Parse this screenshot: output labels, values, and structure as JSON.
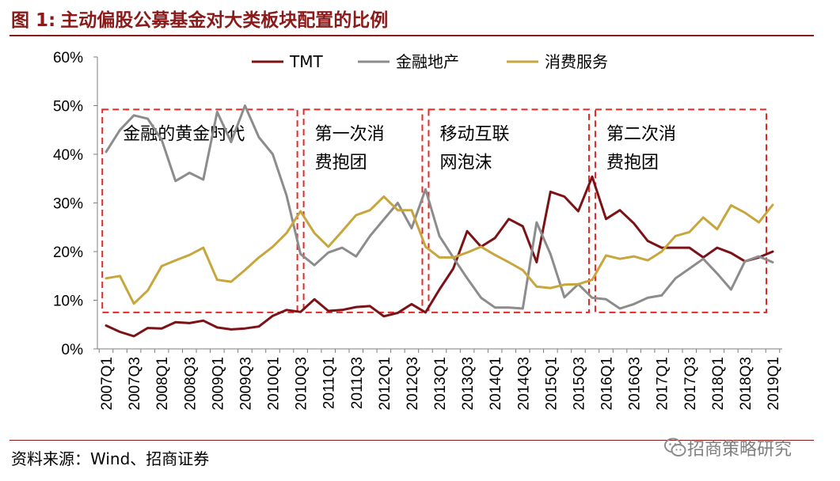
{
  "figure": {
    "title_number": "图 1:",
    "title": "主动偏股公募基金对大类板块配置的比例",
    "source": "资料来源：Wind、招商证券",
    "watermark": "招商策略研究",
    "watermark_icon": "wechat-icon"
  },
  "colors": {
    "title": "#8b1a1a",
    "tmt": "#7b1216",
    "finance": "#8c8c8c",
    "consumer": "#c7a63e",
    "annotation_box": "#e02a2a"
  },
  "chart_data": {
    "type": "line",
    "title": "",
    "xlabel": "",
    "ylabel": "",
    "ylim": [
      0,
      60
    ],
    "yticks": [
      "0%",
      "10%",
      "20%",
      "30%",
      "40%",
      "50%",
      "60%"
    ],
    "grid": false,
    "legend_position": "top-center",
    "x_tick_labels": [
      "2007Q1",
      "2007Q3",
      "2008Q1",
      "2008Q3",
      "2009Q1",
      "2009Q3",
      "2010Q1",
      "2010Q3",
      "2011Q1",
      "2011Q3",
      "2012Q1",
      "2012Q3",
      "2013Q1",
      "2013Q3",
      "2014Q1",
      "2014Q3",
      "2015Q1",
      "2015Q3",
      "2016Q1",
      "2016Q3",
      "2017Q1",
      "2017Q3",
      "2018Q1",
      "2018Q3",
      "2019Q1"
    ],
    "x": [
      "2007Q1",
      "2007Q2",
      "2007Q3",
      "2007Q4",
      "2008Q1",
      "2008Q2",
      "2008Q3",
      "2008Q4",
      "2009Q1",
      "2009Q2",
      "2009Q3",
      "2009Q4",
      "2010Q1",
      "2010Q2",
      "2010Q3",
      "2010Q4",
      "2011Q1",
      "2011Q2",
      "2011Q3",
      "2011Q4",
      "2012Q1",
      "2012Q2",
      "2012Q3",
      "2012Q4",
      "2013Q1",
      "2013Q2",
      "2013Q3",
      "2013Q4",
      "2014Q1",
      "2014Q2",
      "2014Q3",
      "2014Q4",
      "2015Q1",
      "2015Q2",
      "2015Q3",
      "2015Q4",
      "2016Q1",
      "2016Q2",
      "2016Q3",
      "2016Q4",
      "2017Q1",
      "2017Q2",
      "2017Q3",
      "2017Q4",
      "2018Q1",
      "2018Q2",
      "2018Q3",
      "2018Q4",
      "2019Q1"
    ],
    "series": [
      {
        "name": "TMT",
        "color": "#7b1216",
        "values": [
          4.8,
          3.5,
          2.6,
          4.3,
          4.2,
          5.5,
          5.3,
          5.8,
          4.4,
          4.0,
          4.2,
          4.6,
          6.8,
          8.0,
          7.6,
          10.2,
          7.8,
          8.0,
          8.6,
          8.8,
          6.7,
          7.4,
          9.2,
          7.5,
          12.2,
          16.5,
          24.2,
          21.0,
          22.8,
          26.7,
          25.2,
          17.8,
          32.3,
          31.3,
          28.3,
          35.4,
          26.7,
          28.5,
          25.8,
          22.2,
          20.8,
          20.8,
          20.8,
          18.8,
          20.8,
          19.7,
          18.0,
          18.8,
          20.0
        ]
      },
      {
        "name": "金融地产",
        "color": "#8c8c8c",
        "values": [
          40.5,
          45.0,
          48.0,
          47.3,
          43.0,
          34.5,
          36.2,
          34.8,
          48.7,
          42.5,
          50.0,
          43.5,
          40.0,
          31.5,
          19.5,
          17.2,
          19.8,
          20.8,
          19.0,
          23.2,
          26.6,
          30.0,
          24.8,
          32.8,
          23.2,
          18.8,
          14.5,
          10.5,
          8.5,
          8.5,
          8.3,
          26.0,
          19.5,
          10.6,
          13.3,
          10.5,
          10.2,
          8.3,
          9.2,
          10.5,
          11.0,
          14.5,
          16.5,
          18.5,
          15.5,
          12.2,
          18.0,
          19.0,
          17.8
        ]
      },
      {
        "name": "消费服务",
        "color": "#c7a63e",
        "values": [
          14.5,
          15.0,
          9.3,
          12.0,
          17.0,
          18.2,
          19.3,
          20.8,
          14.2,
          13.8,
          16.2,
          18.8,
          21.0,
          23.8,
          28.3,
          23.8,
          21.0,
          24.2,
          27.5,
          28.5,
          31.3,
          28.5,
          28.5,
          21.0,
          18.8,
          18.8,
          19.8,
          21.0,
          19.3,
          17.8,
          16.2,
          12.8,
          12.5,
          13.2,
          13.3,
          14.2,
          19.2,
          18.5,
          19.0,
          18.2,
          20.0,
          23.2,
          24.0,
          27.0,
          24.6,
          29.5,
          28.0,
          26.0,
          29.6
        ]
      }
    ],
    "annotations": [
      {
        "text_lines": [
          "金融的黄金时代"
        ],
        "x_start": "2007Q1",
        "x_end": "2010Q3",
        "y_low": 7.5,
        "y_high": 49.2
      },
      {
        "text_lines": [
          "第一次消",
          "费抱团"
        ],
        "x_start": "2010Q3",
        "x_end": "2012Q4",
        "y_low": 7.5,
        "y_high": 49.2
      },
      {
        "text_lines": [
          "移动互联",
          "网泡沫"
        ],
        "x_start": "2012Q4",
        "x_end": "2015Q4",
        "y_low": 7.5,
        "y_high": 49.2
      },
      {
        "text_lines": [
          "第二次消",
          "费抱团"
        ],
        "x_start": "2015Q4",
        "x_end": "2019Q1",
        "y_low": 7.5,
        "y_high": 49.2
      }
    ]
  }
}
